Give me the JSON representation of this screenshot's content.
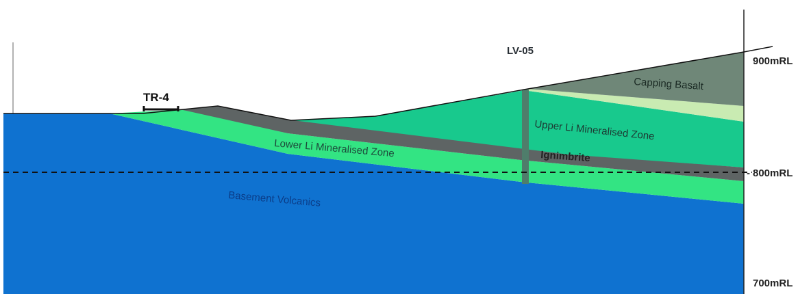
{
  "diagram": {
    "drillhole_label": "LV-05",
    "trench_label": "TR-4",
    "elevation_labels": {
      "rl_900": "900mRL",
      "rl_800": "800mRL",
      "rl_700": "700mRL"
    },
    "units": {
      "capping_basalt": "Capping Basalt",
      "upper_zone": "Upper Li Mineralised Zone",
      "lower_zone": "Lower Li Mineralised Zone",
      "ignimbrite": "Ignimbrite",
      "basement": "Basement Volcanics"
    },
    "colors": {
      "basement": "#0f72d0",
      "lower_zone": "#33e483",
      "upper_zone": "#18c98d",
      "ignimbrite": "#5e6464",
      "pale_band": "#c9ebb2",
      "capping_basalt": "#6f8778",
      "drillhole": "#4f7d6b",
      "line": "#111111",
      "text_dark": "#2a3036",
      "text_basement": "#0b3d88"
    }
  }
}
